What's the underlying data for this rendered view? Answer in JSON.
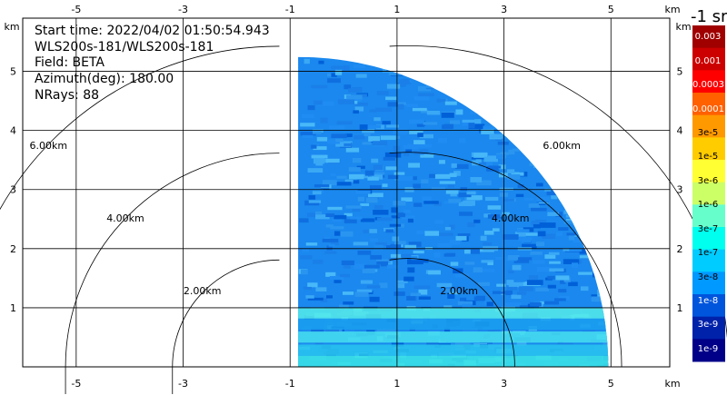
{
  "info": {
    "start_time": "Start time: 2022/04/02 01:50:54.943",
    "instrument": "WLS200s-181/WLS200s-181",
    "field": "Field: BETA",
    "azimuth": "Azimuth(deg): 180.00",
    "nrays": "NRays: 88"
  },
  "colorbar": {
    "title": "-1 sr",
    "labels": [
      "0.003",
      "0.001",
      "0.0003",
      "0.0001",
      "3e-5",
      "1e-5",
      "3e-6",
      "1e-6",
      "3e-7",
      "1e-7",
      "3e-8",
      "1e-8",
      "3e-9",
      "1e-9"
    ],
    "colors": [
      "#a00000",
      "#cc0000",
      "#ff0000",
      "#ff6000",
      "#ff9900",
      "#ffcc00",
      "#ffff33",
      "#ccff66",
      "#66ffcc",
      "#00ffee",
      "#00ccff",
      "#0099ff",
      "#0055dd",
      "#0022aa",
      "#000088"
    ]
  },
  "chart_data": {
    "type": "heatmap",
    "title": "",
    "x_ticks": [
      "-5",
      "-3",
      "-1",
      "1",
      "3",
      "5"
    ],
    "y_ticks": [
      "1",
      "2",
      "3",
      "4",
      "5"
    ],
    "x_unit": "km",
    "y_unit": "km",
    "xlim": [
      -6,
      6.1
    ],
    "ylim": [
      0,
      5.9
    ],
    "range_rings": [
      {
        "radius_km": 2,
        "label": "2.00km"
      },
      {
        "radius_km": 4,
        "label": "4.00km"
      },
      {
        "radius_km": 6,
        "label": "6.00km"
      }
    ],
    "ring_center_left_km": [
      -1.2,
      0
    ],
    "ring_center_right_km": [
      1.2,
      0
    ],
    "data_sector_max_range_km": 5.8,
    "grid": true
  }
}
